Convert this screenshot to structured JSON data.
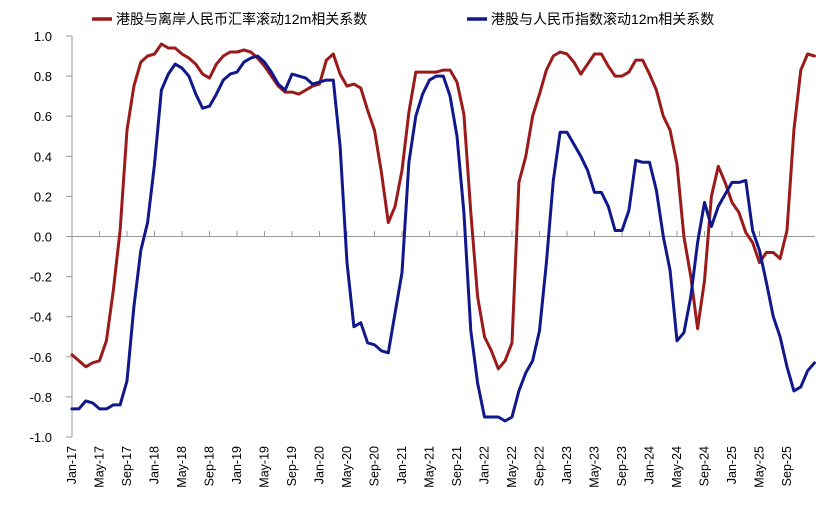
{
  "chart_data": {
    "type": "line",
    "title": "",
    "xlabel": "",
    "ylabel": "",
    "ylim": [
      -1.0,
      1.0
    ],
    "yticks": [
      "1.0",
      "0.8",
      "0.6",
      "0.4",
      "0.2",
      "0.0",
      "-0.2",
      "-0.4",
      "-0.6",
      "-0.8",
      "-1.0"
    ],
    "ytick_values": [
      1.0,
      0.8,
      0.6,
      0.4,
      0.2,
      0.0,
      -0.2,
      -0.4,
      -0.6,
      -0.8,
      -1.0
    ],
    "xtick_labels": [
      "Jan-17",
      "May-17",
      "Sep-17",
      "Jan-18",
      "May-18",
      "Sep-18",
      "Jan-19",
      "May-19",
      "Sep-19",
      "Jan-20",
      "May-20",
      "Sep-20",
      "Jan-21",
      "May-21",
      "Sep-21",
      "Jan-22",
      "May-22",
      "Sep-22",
      "Jan-23",
      "May-23",
      "Sep-23",
      "Jan-24",
      "May-24",
      "Sep-24",
      "Jan-25",
      "May-25",
      "Sep-25"
    ],
    "x_start": "Jan-17",
    "x_step": "1 month",
    "grid": false,
    "legend_placement": "top",
    "series": [
      {
        "name": "港股与离岸人民币汇率滚动12m相关系数",
        "color": "#9B1B1B",
        "values": [
          -0.59,
          -0.62,
          -0.65,
          -0.63,
          -0.62,
          -0.52,
          -0.27,
          0.03,
          0.53,
          0.75,
          0.87,
          0.9,
          0.91,
          0.96,
          0.94,
          0.94,
          0.91,
          0.89,
          0.86,
          0.81,
          0.79,
          0.86,
          0.9,
          0.92,
          0.92,
          0.93,
          0.92,
          0.89,
          0.85,
          0.8,
          0.75,
          0.72,
          0.72,
          0.71,
          0.73,
          0.75,
          0.76,
          0.88,
          0.91,
          0.81,
          0.75,
          0.76,
          0.74,
          0.63,
          0.53,
          0.32,
          0.07,
          0.15,
          0.33,
          0.62,
          0.82,
          0.82,
          0.82,
          0.82,
          0.83,
          0.83,
          0.77,
          0.61,
          0.12,
          -0.3,
          -0.5,
          -0.57,
          -0.66,
          -0.62,
          -0.53,
          0.27,
          0.4,
          0.6,
          0.71,
          0.83,
          0.9,
          0.92,
          0.91,
          0.87,
          0.81,
          0.86,
          0.91,
          0.91,
          0.85,
          0.8,
          0.8,
          0.82,
          0.88,
          0.88,
          0.81,
          0.73,
          0.6,
          0.53,
          0.36,
          0.0,
          -0.2,
          -0.46,
          -0.22,
          0.2,
          0.35,
          0.27,
          0.17,
          0.12,
          0.02,
          -0.03,
          -0.13,
          -0.08,
          -0.08,
          -0.11,
          0.03,
          0.53,
          0.83,
          0.91,
          0.9
        ]
      },
      {
        "name": "港股与人民币指数滚动12m相关系数",
        "color": "#10188C",
        "values": [
          -0.86,
          -0.86,
          -0.82,
          -0.83,
          -0.86,
          -0.86,
          -0.84,
          -0.84,
          -0.72,
          -0.35,
          -0.07,
          0.07,
          0.36,
          0.73,
          0.81,
          0.86,
          0.84,
          0.8,
          0.71,
          0.64,
          0.65,
          0.71,
          0.78,
          0.81,
          0.82,
          0.87,
          0.89,
          0.9,
          0.87,
          0.82,
          0.76,
          0.73,
          0.81,
          0.8,
          0.79,
          0.76,
          0.77,
          0.78,
          0.78,
          0.45,
          -0.13,
          -0.45,
          -0.43,
          -0.53,
          -0.54,
          -0.57,
          -0.58,
          -0.38,
          -0.18,
          0.37,
          0.6,
          0.71,
          0.78,
          0.8,
          0.8,
          0.7,
          0.5,
          0.12,
          -0.47,
          -0.73,
          -0.9,
          -0.9,
          -0.9,
          -0.92,
          -0.9,
          -0.77,
          -0.68,
          -0.62,
          -0.47,
          -0.13,
          0.28,
          0.52,
          0.52,
          0.46,
          0.4,
          0.33,
          0.22,
          0.22,
          0.15,
          0.03,
          0.03,
          0.13,
          0.38,
          0.37,
          0.37,
          0.23,
          0.0,
          -0.17,
          -0.52,
          -0.48,
          -0.3,
          -0.03,
          0.17,
          0.05,
          0.15,
          0.21,
          0.27,
          0.27,
          0.28,
          0.03,
          -0.07,
          -0.23,
          -0.4,
          -0.5,
          -0.65,
          -0.77,
          -0.75,
          -0.67,
          -0.63
        ]
      }
    ]
  }
}
